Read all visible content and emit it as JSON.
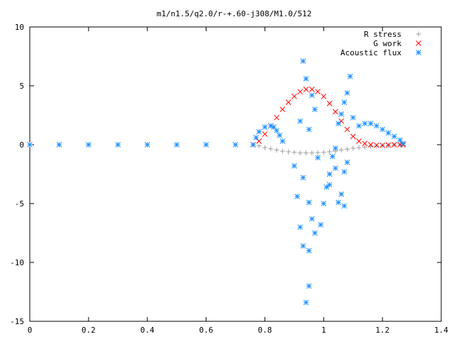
{
  "chart_data": {
    "type": "scatter",
    "title": "m1/n1.5/q2.0/r-+.60-j308/M1.0/512",
    "xlabel": "",
    "ylabel": "",
    "xlim": [
      0,
      1.4
    ],
    "ylim": [
      -15,
      10
    ],
    "x_ticks": [
      0,
      0.2,
      0.4,
      0.6,
      0.8,
      1,
      1.2,
      1.4
    ],
    "y_ticks": [
      10,
      5,
      0,
      -5,
      -10,
      -15
    ],
    "grid": false,
    "legend_position": "top-right",
    "series": [
      {
        "name": "R stress",
        "marker": "+",
        "color": "#a0a0a0",
        "points": [
          [
            0,
            0
          ],
          [
            0.1,
            0
          ],
          [
            0.2,
            0
          ],
          [
            0.3,
            0
          ],
          [
            0.4,
            0
          ],
          [
            0.5,
            0
          ],
          [
            0.6,
            0
          ],
          [
            0.7,
            0
          ],
          [
            0.76,
            0
          ],
          [
            0.78,
            -0.1
          ],
          [
            0.8,
            -0.25
          ],
          [
            0.82,
            -0.35
          ],
          [
            0.84,
            -0.45
          ],
          [
            0.86,
            -0.55
          ],
          [
            0.88,
            -0.6
          ],
          [
            0.9,
            -0.65
          ],
          [
            0.92,
            -0.7
          ],
          [
            0.94,
            -0.7
          ],
          [
            0.96,
            -0.7
          ],
          [
            0.98,
            -0.68
          ],
          [
            1.0,
            -0.65
          ],
          [
            1.02,
            -0.6
          ],
          [
            1.04,
            -0.55
          ],
          [
            1.06,
            -0.45
          ],
          [
            1.08,
            -0.38
          ],
          [
            1.1,
            -0.3
          ],
          [
            1.12,
            -0.25
          ],
          [
            1.14,
            -0.2
          ],
          [
            1.16,
            -0.15
          ],
          [
            1.18,
            -0.1
          ],
          [
            1.2,
            -0.08
          ],
          [
            1.22,
            -0.05
          ],
          [
            1.24,
            -0.03
          ],
          [
            1.26,
            0
          ]
        ]
      },
      {
        "name": "G work",
        "marker": "x",
        "color": "#ff0000",
        "points": [
          [
            0.76,
            0
          ],
          [
            0.78,
            0.3
          ],
          [
            0.8,
            0.9
          ],
          [
            0.82,
            1.6
          ],
          [
            0.84,
            2.3
          ],
          [
            0.86,
            3.0
          ],
          [
            0.88,
            3.6
          ],
          [
            0.9,
            4.1
          ],
          [
            0.92,
            4.5
          ],
          [
            0.94,
            4.7
          ],
          [
            0.96,
            4.7
          ],
          [
            0.98,
            4.5
          ],
          [
            1.0,
            4.1
          ],
          [
            1.02,
            3.5
          ],
          [
            1.04,
            2.8
          ],
          [
            1.06,
            2.0
          ],
          [
            1.08,
            1.3
          ],
          [
            1.1,
            0.7
          ],
          [
            1.12,
            0.3
          ],
          [
            1.14,
            0.1
          ],
          [
            1.16,
            0
          ],
          [
            1.18,
            -0.05
          ],
          [
            1.2,
            -0.05
          ],
          [
            1.22,
            -0.03
          ],
          [
            1.24,
            0
          ],
          [
            1.26,
            0
          ],
          [
            1.27,
            0
          ]
        ]
      },
      {
        "name": "Acoustic flux",
        "marker": "*",
        "color": "#1e90ff",
        "points": [
          [
            0,
            0
          ],
          [
            0.1,
            0
          ],
          [
            0.2,
            0
          ],
          [
            0.3,
            0
          ],
          [
            0.4,
            0
          ],
          [
            0.5,
            0
          ],
          [
            0.6,
            0
          ],
          [
            0.7,
            0
          ],
          [
            0.76,
            0
          ],
          [
            0.77,
            0.6
          ],
          [
            0.78,
            1.1
          ],
          [
            0.8,
            1.5
          ],
          [
            0.82,
            1.6
          ],
          [
            0.83,
            1.5
          ],
          [
            0.84,
            1.2
          ],
          [
            0.85,
            0.8
          ],
          [
            0.86,
            0.3
          ],
          [
            0.93,
            7.1
          ],
          [
            0.94,
            5.6
          ],
          [
            0.96,
            4.2
          ],
          [
            0.97,
            3.0
          ],
          [
            0.92,
            2.0
          ],
          [
            0.95,
            1.3
          ],
          [
            0.98,
            -1.1
          ],
          [
            0.9,
            -1.8
          ],
          [
            0.93,
            -2.8
          ],
          [
            0.91,
            -4.4
          ],
          [
            0.95,
            -4.9
          ],
          [
            0.96,
            -6.3
          ],
          [
            0.92,
            -7.0
          ],
          [
            0.93,
            -8.6
          ],
          [
            0.95,
            -9.0
          ],
          [
            0.94,
            -13.4
          ],
          [
            0.95,
            -12.0
          ],
          [
            0.97,
            -7.5
          ],
          [
            0.99,
            -6.8
          ],
          [
            1.0,
            -5.0
          ],
          [
            1.01,
            -3.6
          ],
          [
            1.02,
            -2.5
          ],
          [
            1.03,
            -1.0
          ],
          [
            1.04,
            -0.3
          ],
          [
            1.05,
            1.8
          ],
          [
            1.06,
            2.6
          ],
          [
            1.07,
            3.6
          ],
          [
            1.08,
            4.4
          ],
          [
            1.09,
            5.8
          ],
          [
            1.1,
            2.3
          ],
          [
            1.08,
            -1.5
          ],
          [
            1.07,
            -2.3
          ],
          [
            1.06,
            -4.2
          ],
          [
            1.07,
            -5.2
          ],
          [
            1.05,
            -4.9
          ],
          [
            1.04,
            -2.0
          ],
          [
            1.02,
            -3.4
          ],
          [
            1.12,
            1.6
          ],
          [
            1.14,
            1.8
          ],
          [
            1.16,
            1.8
          ],
          [
            1.18,
            1.6
          ],
          [
            1.2,
            1.3
          ],
          [
            1.22,
            1.0
          ],
          [
            1.24,
            0.7
          ],
          [
            1.26,
            0.4
          ],
          [
            1.27,
            0.1
          ]
        ]
      }
    ]
  }
}
